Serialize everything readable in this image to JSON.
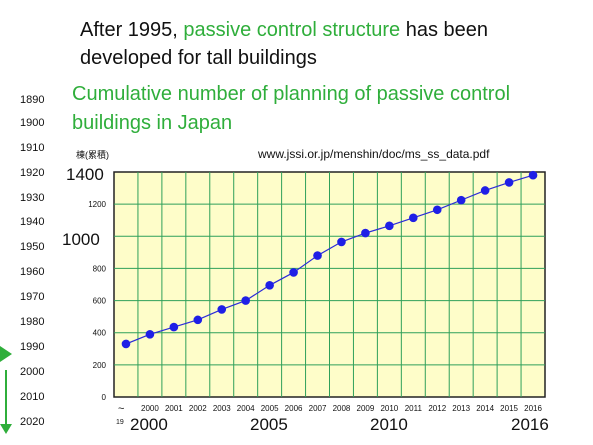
{
  "heading": {
    "part1": "After 1995, ",
    "highlight": "passive control structure",
    "part2": " has been developed for tall buildings"
  },
  "subtitle": "Cumulative number of planning of passive control buildings in Japan",
  "years_column": [
    "1890",
    "1900",
    "1910",
    "1920",
    "1930",
    "1940",
    "1950",
    "1960",
    "1970",
    "1980",
    "1990",
    "2000",
    "2010",
    "2020"
  ],
  "colors": {
    "accent_green": "#2fae3b",
    "plot_bg": "#fefdc9",
    "grid": "#2fa05a",
    "marker": "#1f1fe6",
    "line": "#2b2bd8"
  },
  "icons": [
    "arrow-right-icon",
    "arrow-down-icon"
  ],
  "chart_data": {
    "type": "line",
    "title": "",
    "unit_label": "棟(累積)",
    "source": "www.jssi.or.jp/menshin/doc/ms_ss_data.pdf",
    "xlabel": "",
    "ylabel": "",
    "categories": [
      "~19",
      "2000",
      "2001",
      "2002",
      "2003",
      "2004",
      "2005",
      "2006",
      "2007",
      "2008",
      "2009",
      "2010",
      "2011",
      "2012",
      "2013",
      "2014",
      "2015",
      "2016"
    ],
    "series": [
      {
        "values": [
          330,
          390,
          435,
          480,
          545,
          600,
          695,
          775,
          880,
          965,
          1020,
          1065,
          1115,
          1165,
          1225,
          1285,
          1335,
          1380
        ]
      }
    ],
    "ylim": [
      0,
      1400
    ],
    "y_ticks": [
      0,
      200,
      400,
      600,
      800,
      1000,
      1200,
      1400
    ],
    "y_ticks_emphasized": [
      "1400",
      "1000"
    ],
    "x_ticks_emphasized": [
      "2000",
      "2005",
      "2010",
      "2016"
    ],
    "tilde_label": "~",
    "tilde_sub": "19",
    "grid": true,
    "legend": "none"
  }
}
